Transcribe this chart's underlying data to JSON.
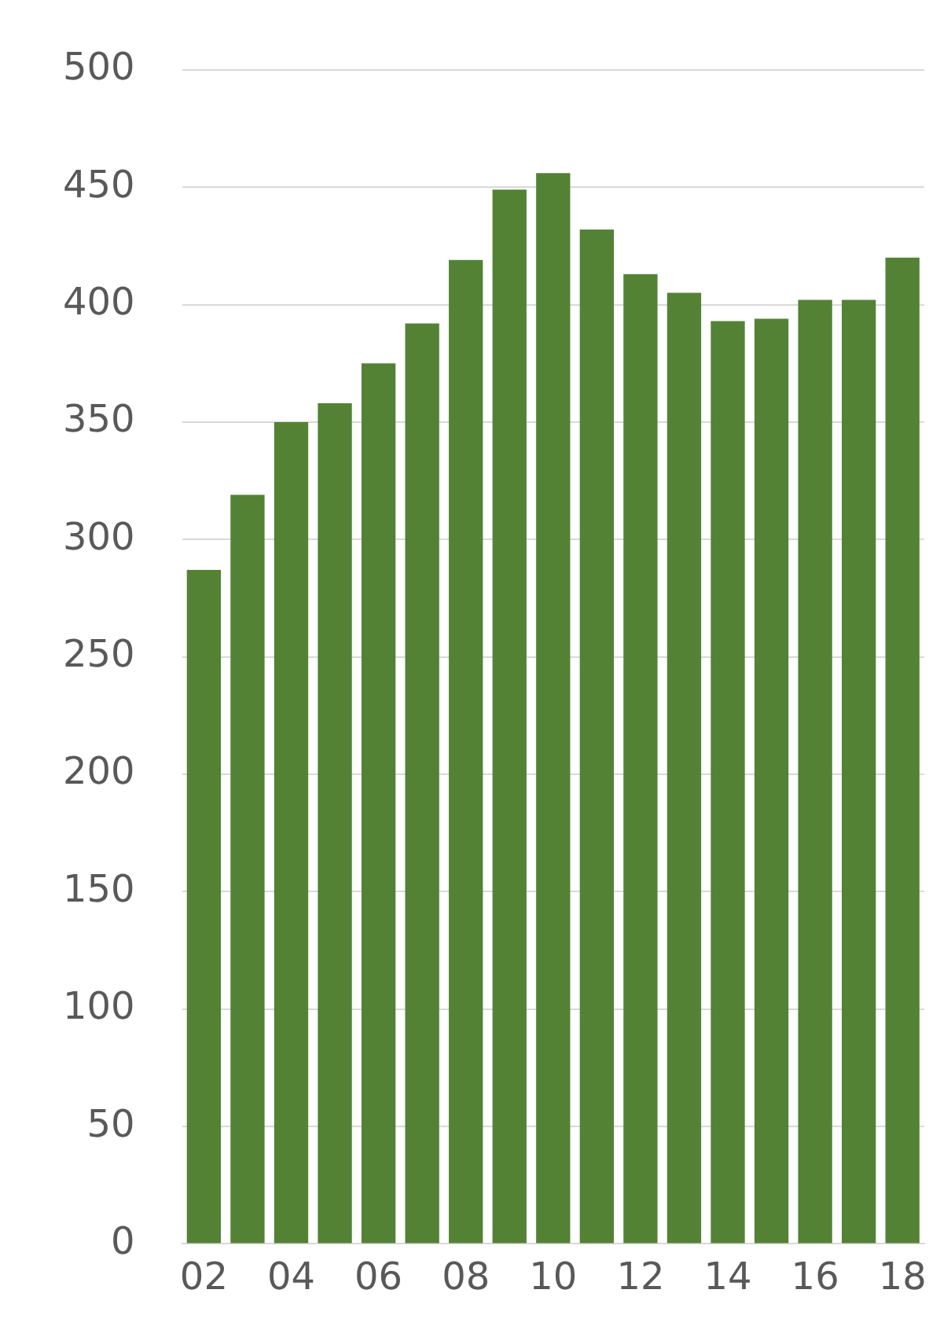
{
  "chart_data": {
    "type": "bar",
    "categories": [
      "02",
      null,
      "04",
      null,
      "06",
      null,
      "08",
      null,
      "10",
      null,
      "12",
      null,
      "14",
      null,
      "16",
      null,
      "18"
    ],
    "values": [
      287,
      319,
      350,
      358,
      375,
      392,
      419,
      449,
      456,
      432,
      413,
      405,
      393,
      394,
      402,
      402,
      420
    ],
    "color": "#548235",
    "ylim": [
      0,
      500
    ],
    "yticks": [
      0,
      50,
      100,
      150,
      200,
      250,
      300,
      350,
      400,
      450,
      500
    ],
    "grid": "y"
  }
}
